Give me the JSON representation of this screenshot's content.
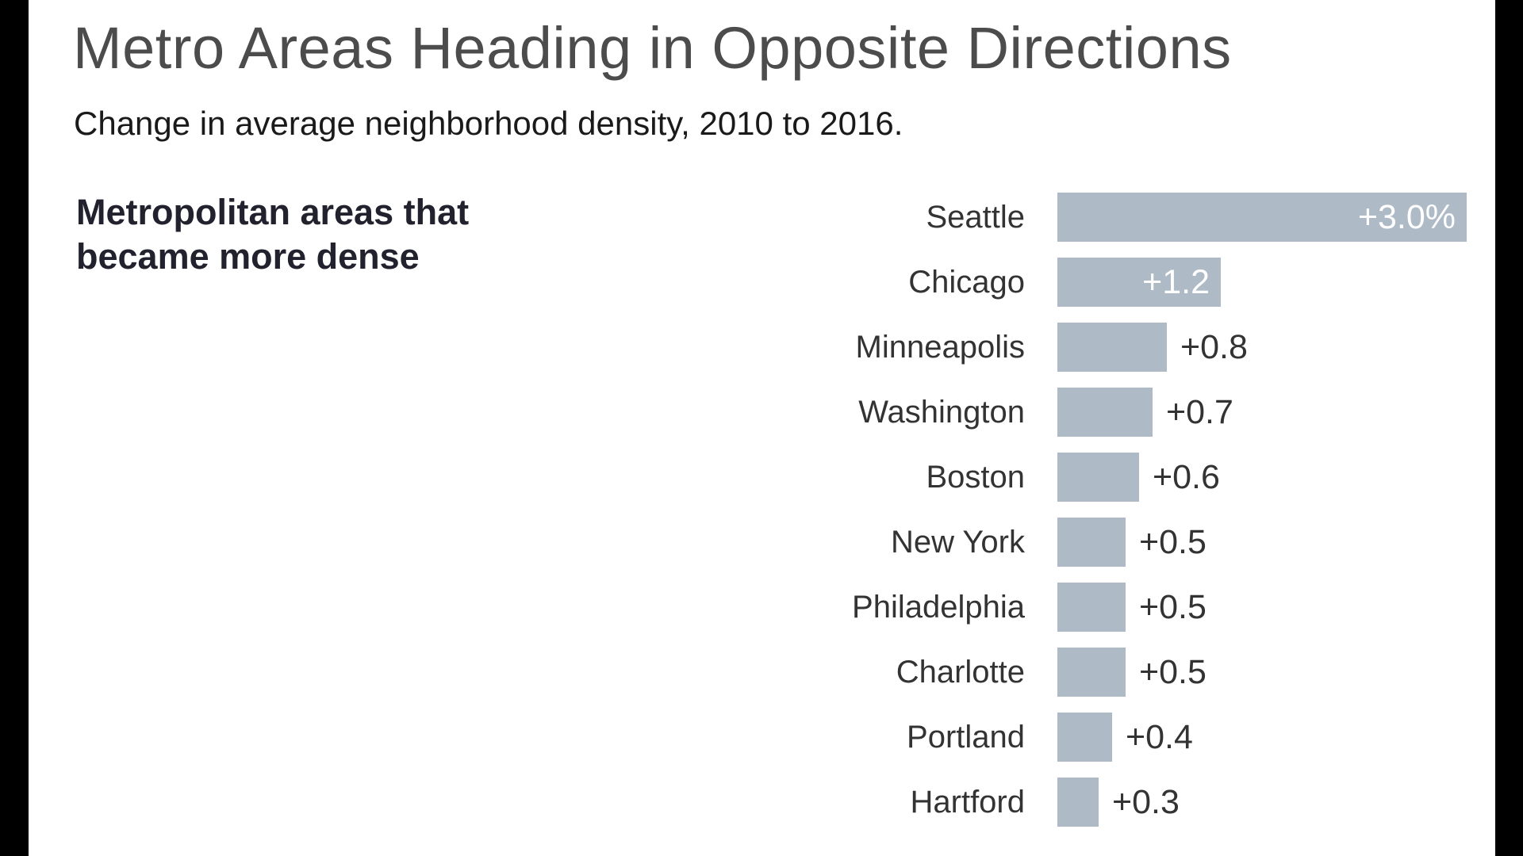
{
  "title": "Metro Areas Heading in Opposite Directions",
  "subtitle": "Change in average neighborhood density, 2010 to 2016.",
  "section_note": {
    "line1": "Metropolitan areas that",
    "line2": "became more dense"
  },
  "colors": {
    "bar": "#afbac7",
    "title": "#4c4c4c",
    "subtitle": "#1a1a1a",
    "label": "#333333",
    "value_inside": "#ffffff",
    "content_background": "#ffffff",
    "frame_background": "#000000"
  },
  "chart_data": {
    "type": "bar",
    "orientation": "horizontal",
    "title": "Metro Areas Heading in Opposite Directions",
    "subtitle": "Change in average neighborhood density, 2010 to 2016.",
    "group_label": "Metropolitan areas that became more dense",
    "categories": [
      "Seattle",
      "Chicago",
      "Minneapolis",
      "Washington",
      "Boston",
      "New York",
      "Philadelphia",
      "Charlotte",
      "Portland",
      "Hartford"
    ],
    "values": [
      3.0,
      1.2,
      0.8,
      0.7,
      0.6,
      0.5,
      0.5,
      0.5,
      0.4,
      0.3
    ],
    "value_labels": [
      "+3.0%",
      "+1.2",
      "+0.8",
      "+0.7",
      "+0.6",
      "+0.5",
      "+0.5",
      "+0.5",
      "+0.4",
      "+0.3"
    ],
    "value_label_inside_bar": [
      true,
      true,
      false,
      false,
      false,
      false,
      false,
      false,
      false,
      false
    ],
    "xlim": [
      0,
      3.0
    ],
    "grid": false,
    "legend": false
  }
}
